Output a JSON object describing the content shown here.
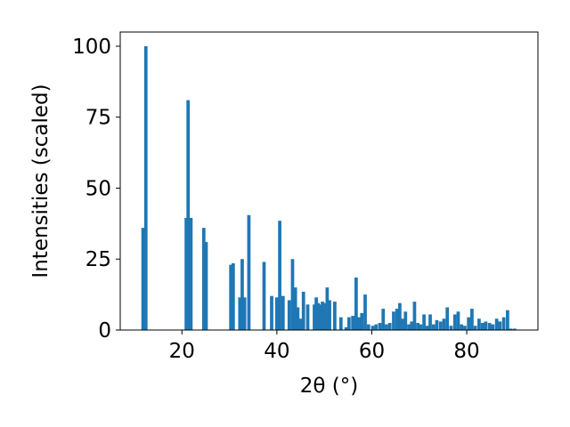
{
  "chart_data": {
    "type": "bar",
    "xlabel": "2θ (°)",
    "ylabel": "Intensities (scaled)",
    "xlim": [
      7,
      95
    ],
    "ylim": [
      0,
      105
    ],
    "x_ticks": [
      20,
      40,
      60,
      80
    ],
    "y_ticks": [
      0,
      25,
      50,
      75,
      100
    ],
    "x_tick_labels": [
      "20",
      "40",
      "60",
      "80"
    ],
    "y_tick_labels": [
      "0",
      "25",
      "50",
      "75",
      "100"
    ],
    "bar_color": "#1f77b4",
    "bar_width": 0.7,
    "grid": false,
    "x": [
      11.8,
      12.4,
      20.9,
      21.3,
      21.9,
      24.6,
      25.1,
      30.3,
      30.8,
      32.2,
      32.7,
      33.2,
      34.1,
      37.3,
      38.9,
      40.0,
      40.6,
      41.3,
      42.6,
      43.3,
      43.9,
      44.4,
      45.0,
      45.6,
      46.5,
      47.9,
      48.3,
      48.7,
      49.2,
      49.6,
      50.1,
      50.6,
      51.1,
      52.2,
      53.5,
      54.6,
      55.2,
      56.0,
      56.7,
      57.3,
      57.9,
      58.6,
      59.3,
      60.2,
      60.9,
      61.7,
      62.4,
      63.1,
      63.8,
      64.6,
      65.3,
      65.9,
      66.5,
      67.1,
      67.8,
      68.4,
      69.0,
      69.7,
      70.3,
      71.0,
      71.7,
      72.3,
      73.0,
      73.7,
      74.5,
      75.2,
      75.9,
      76.7,
      77.5,
      78.2,
      78.9,
      79.6,
      80.4,
      81.1,
      81.8,
      82.6,
      83.3,
      84.0,
      84.8,
      85.5,
      86.3,
      87.0,
      87.8,
      88.6,
      89.3,
      90.1
    ],
    "values": [
      36.0,
      100.0,
      39.5,
      81.0,
      39.5,
      36.0,
      31.0,
      23.0,
      23.5,
      11.5,
      25.0,
      11.5,
      40.5,
      24.0,
      12.0,
      11.5,
      38.5,
      12.0,
      10.5,
      25.0,
      15.0,
      8.0,
      4.0,
      13.5,
      9.0,
      9.0,
      11.5,
      9.5,
      9.0,
      10.0,
      9.5,
      15.0,
      10.5,
      10.0,
      4.5,
      1.0,
      4.5,
      5.0,
      18.5,
      4.5,
      6.0,
      12.5,
      2.0,
      1.5,
      2.0,
      2.5,
      7.5,
      2.0,
      2.5,
      6.5,
      7.5,
      9.5,
      4.0,
      6.5,
      2.0,
      3.0,
      10.0,
      2.5,
      2.0,
      5.5,
      1.5,
      5.5,
      2.0,
      3.5,
      3.0,
      4.0,
      8.0,
      1.5,
      5.5,
      6.5,
      2.0,
      1.5,
      4.5,
      7.5,
      1.5,
      4.0,
      2.5,
      3.0,
      2.5,
      2.0,
      4.0,
      3.0,
      4.5,
      7.0,
      0.5,
      0.5
    ]
  }
}
